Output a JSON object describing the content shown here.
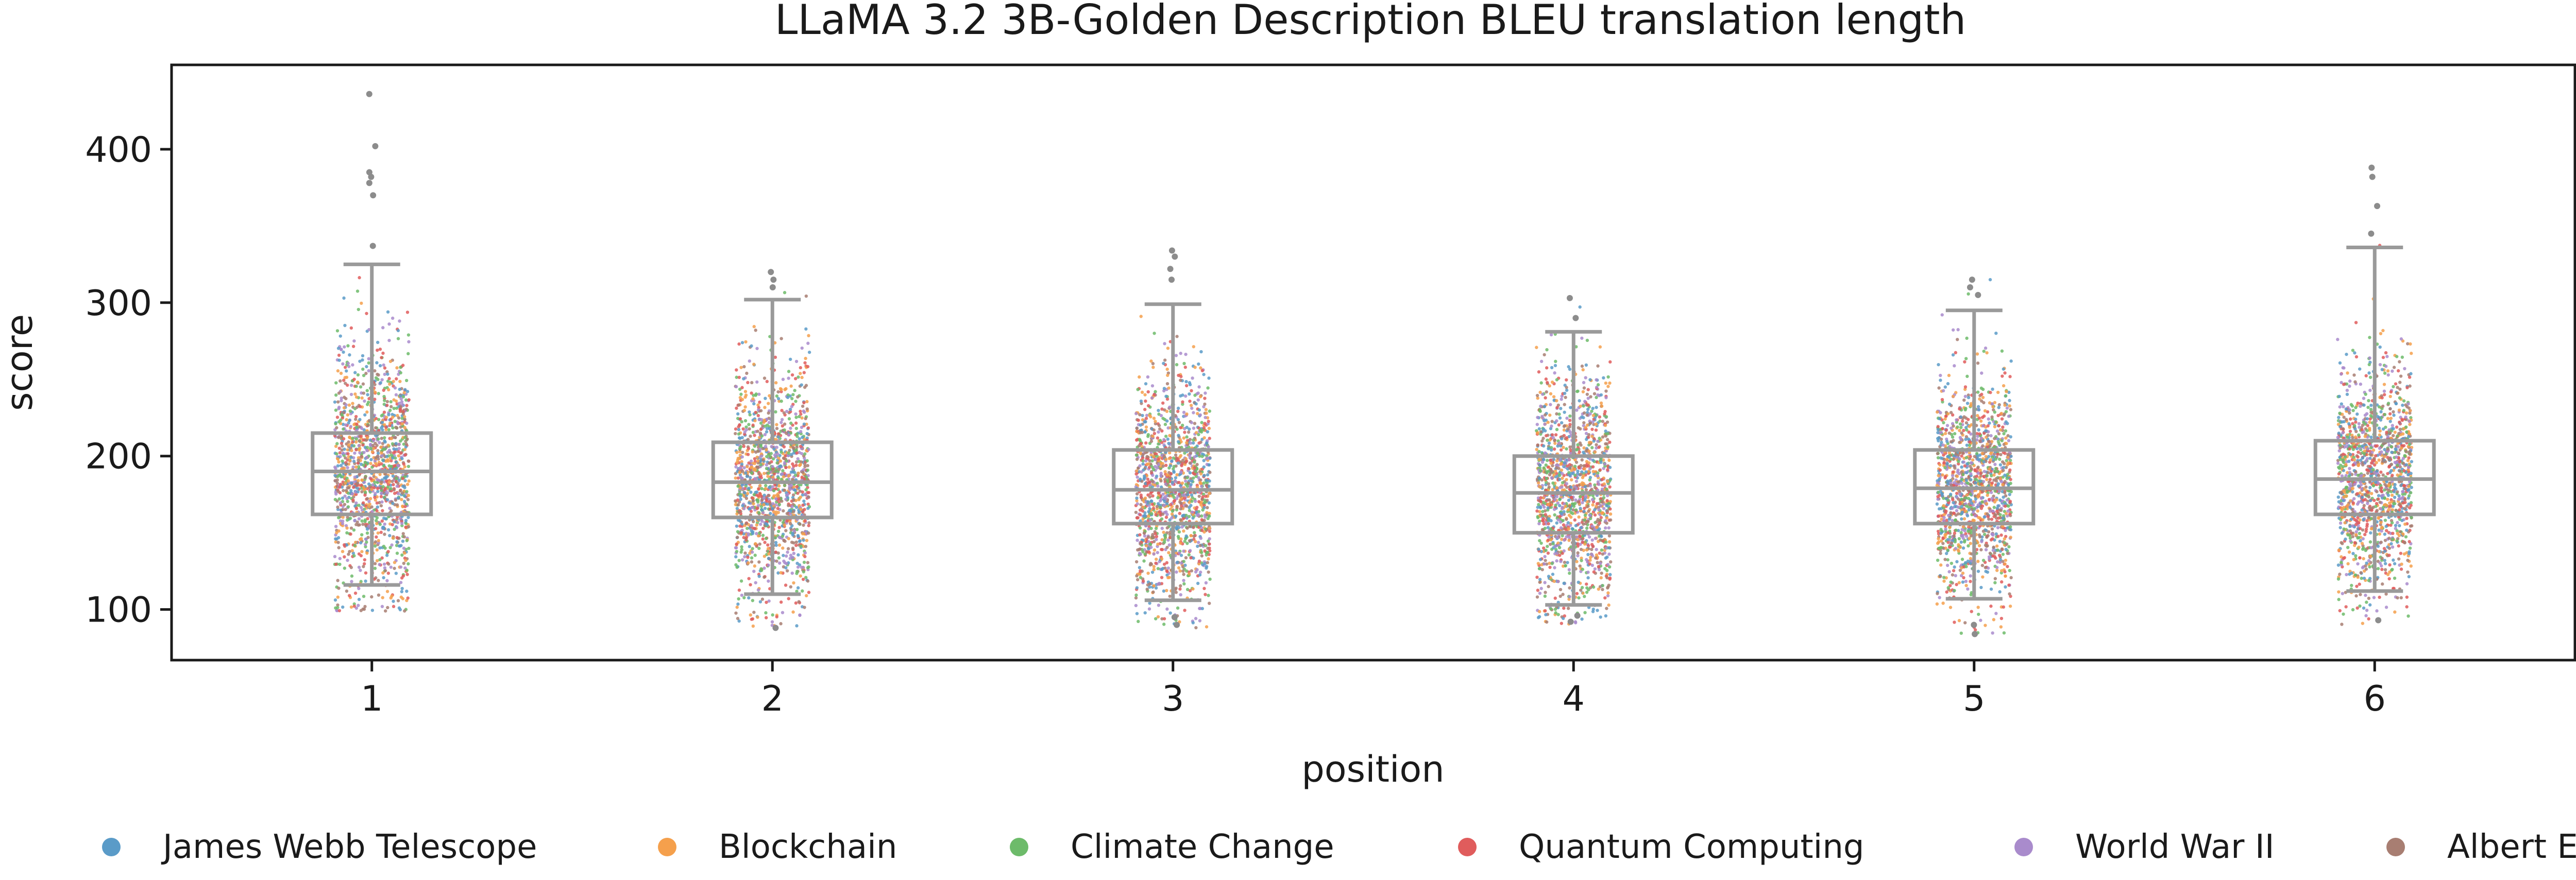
{
  "chart_data": {
    "type": "box-strip",
    "title": "LLaMA 3.2 3B-Golden Description BLEU translation length",
    "xlabel": "position",
    "ylabel": "score",
    "categories": [
      "1",
      "2",
      "3",
      "4",
      "5",
      "6"
    ],
    "xticks": [
      "1",
      "2",
      "3",
      "4",
      "5",
      "6"
    ],
    "yticks": [
      100,
      200,
      300,
      400
    ],
    "ylim": [
      67,
      455
    ],
    "grid": false,
    "legend_position": "bottom",
    "series": [
      {
        "name": "James Webb Telescope",
        "color": "#5a9bc8"
      },
      {
        "name": "Blockchain",
        "color": "#f5a04c"
      },
      {
        "name": "Climate Change",
        "color": "#6dbb6a"
      },
      {
        "name": "Quantum Computing",
        "color": "#e05c5c"
      },
      {
        "name": "World War II",
        "color": "#a98bcc"
      },
      {
        "name": "Albert Einstein",
        "color": "#a87e72"
      }
    ],
    "boxes": [
      {
        "category": "1",
        "whisker_low": 116,
        "q1": 162,
        "median": 190,
        "q3": 215,
        "whisker_high": 325,
        "strip_low": 97,
        "strip_high": 330,
        "outliers": [
          337,
          370,
          378,
          382,
          385,
          402,
          436
        ]
      },
      {
        "category": "2",
        "whisker_low": 110,
        "q1": 160,
        "median": 183,
        "q3": 209,
        "whisker_high": 302,
        "strip_low": 87,
        "strip_high": 320,
        "outliers": [
          88,
          310,
          315,
          320
        ]
      },
      {
        "category": "3",
        "whisker_low": 106,
        "q1": 156,
        "median": 178,
        "q3": 204,
        "whisker_high": 299,
        "strip_low": 88,
        "strip_high": 335,
        "outliers": [
          90,
          95,
          315,
          322,
          330,
          334
        ]
      },
      {
        "category": "4",
        "whisker_low": 103,
        "q1": 150,
        "median": 176,
        "q3": 200,
        "whisker_high": 281,
        "strip_low": 90,
        "strip_high": 304,
        "outliers": [
          92,
          96,
          290,
          303
        ]
      },
      {
        "category": "5",
        "whisker_low": 107,
        "q1": 156,
        "median": 179,
        "q3": 204,
        "whisker_high": 295,
        "strip_low": 84,
        "strip_high": 315,
        "outliers": [
          84,
          90,
          305,
          310,
          315
        ]
      },
      {
        "category": "6",
        "whisker_low": 112,
        "q1": 162,
        "median": 185,
        "q3": 210,
        "whisker_high": 336,
        "strip_low": 90,
        "strip_high": 345,
        "outliers": [
          93,
          345,
          363,
          382,
          388
        ]
      }
    ],
    "box_color": "#9a9a9a"
  }
}
